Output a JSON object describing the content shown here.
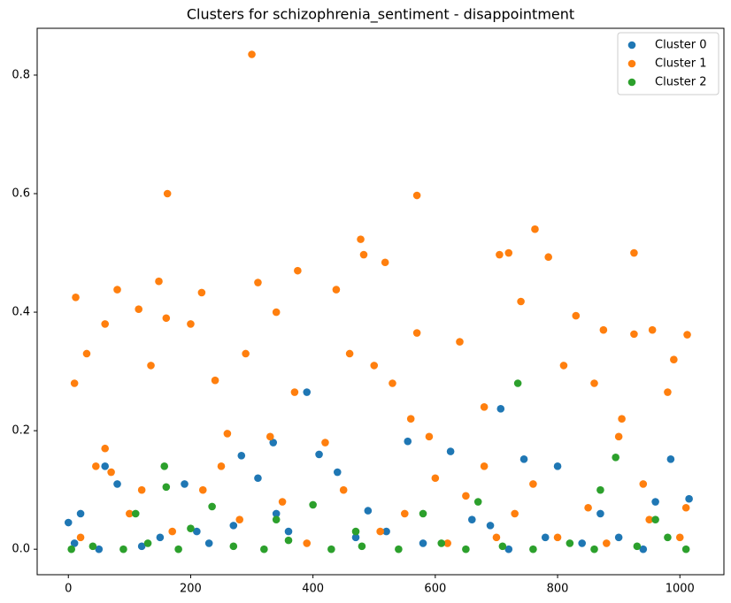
{
  "chart_data": {
    "type": "scatter",
    "title": "Clusters for schizophrenia_sentiment - disappointment",
    "xlim": [
      -51,
      1072
    ],
    "ylim": [
      -0.043,
      0.879
    ],
    "xticks": [
      0,
      200,
      400,
      600,
      800,
      1000
    ],
    "yticks": [
      {
        "value": 0,
        "label": "0.0"
      },
      {
        "value": 0.2,
        "label": "0.2"
      },
      {
        "value": 0.4,
        "label": "0.4"
      },
      {
        "value": 0.6,
        "label": "0.6"
      },
      {
        "value": 0.8,
        "label": "0.8"
      }
    ],
    "legend": "upper right",
    "series": [
      {
        "name": "Cluster 0",
        "color": "#1f77b4",
        "x": [
          390,
          707,
          745,
          985,
          283,
          335,
          555,
          20,
          80,
          190,
          440,
          625,
          800,
          870,
          960,
          10,
          50,
          120,
          150,
          230,
          270,
          310,
          360,
          410,
          470,
          520,
          580,
          660,
          720,
          780,
          840,
          900,
          940,
          1015,
          0,
          60,
          210,
          340,
          490,
          690
        ],
        "values": [
          0.265,
          0.237,
          0.152,
          0.152,
          0.158,
          0.18,
          0.182,
          0.06,
          0.11,
          0.11,
          0.13,
          0.165,
          0.14,
          0.06,
          0.08,
          0.01,
          0.0,
          0.005,
          0.02,
          0.01,
          0.04,
          0.12,
          0.03,
          0.16,
          0.02,
          0.03,
          0.01,
          0.05,
          0.0,
          0.02,
          0.01,
          0.02,
          0.0,
          0.085,
          0.045,
          0.14,
          0.03,
          0.06,
          0.065,
          0.04
        ]
      },
      {
        "name": "Cluster 1",
        "color": "#ff7f0e",
        "x": [
          300,
          162,
          570,
          763,
          478,
          720,
          705,
          785,
          925,
          483,
          518,
          375,
          148,
          12,
          80,
          438,
          218,
          340,
          115,
          160,
          830,
          570,
          925,
          1012,
          740,
          955,
          875,
          240,
          10,
          290,
          530,
          640,
          590,
          860,
          980,
          30,
          60,
          135,
          200,
          260,
          370,
          500,
          560,
          680,
          810,
          900,
          990,
          45,
          100,
          220,
          330,
          420,
          460,
          600,
          650,
          730,
          800,
          950,
          20,
          170,
          280,
          390,
          510,
          620,
          700,
          880,
          1000,
          350,
          450,
          550,
          760,
          850,
          940,
          1010,
          70,
          250,
          310,
          680,
          905,
          60,
          120
        ],
        "values": [
          0.835,
          0.6,
          0.597,
          0.54,
          0.523,
          0.5,
          0.497,
          0.493,
          0.5,
          0.497,
          0.484,
          0.47,
          0.452,
          0.425,
          0.438,
          0.438,
          0.433,
          0.4,
          0.405,
          0.39,
          0.394,
          0.365,
          0.363,
          0.362,
          0.418,
          0.37,
          0.37,
          0.285,
          0.28,
          0.33,
          0.28,
          0.35,
          0.19,
          0.28,
          0.265,
          0.33,
          0.38,
          0.31,
          0.38,
          0.195,
          0.265,
          0.31,
          0.22,
          0.24,
          0.31,
          0.19,
          0.32,
          0.14,
          0.06,
          0.1,
          0.19,
          0.18,
          0.33,
          0.12,
          0.09,
          0.06,
          0.02,
          0.05,
          0.02,
          0.03,
          0.05,
          0.01,
          0.03,
          0.01,
          0.02,
          0.01,
          0.02,
          0.08,
          0.1,
          0.06,
          0.11,
          0.07,
          0.11,
          0.07,
          0.13,
          0.14,
          0.45,
          0.14,
          0.22,
          0.17,
          0.1
        ]
      },
      {
        "name": "Cluster 2",
        "color": "#2ca02c",
        "x": [
          735,
          157,
          160,
          895,
          110,
          235,
          400,
          580,
          670,
          870,
          5,
          40,
          90,
          130,
          180,
          270,
          320,
          360,
          430,
          480,
          540,
          610,
          650,
          710,
          760,
          820,
          860,
          930,
          980,
          1010,
          200,
          470,
          960,
          340
        ],
        "values": [
          0.28,
          0.14,
          0.105,
          0.155,
          0.06,
          0.072,
          0.075,
          0.06,
          0.08,
          0.1,
          0.0,
          0.005,
          0.0,
          0.01,
          0.0,
          0.005,
          0.0,
          0.015,
          0.0,
          0.005,
          0.0,
          0.01,
          0.0,
          0.005,
          0.0,
          0.01,
          0.0,
          0.005,
          0.02,
          0.0,
          0.035,
          0.03,
          0.05,
          0.05
        ]
      }
    ]
  }
}
